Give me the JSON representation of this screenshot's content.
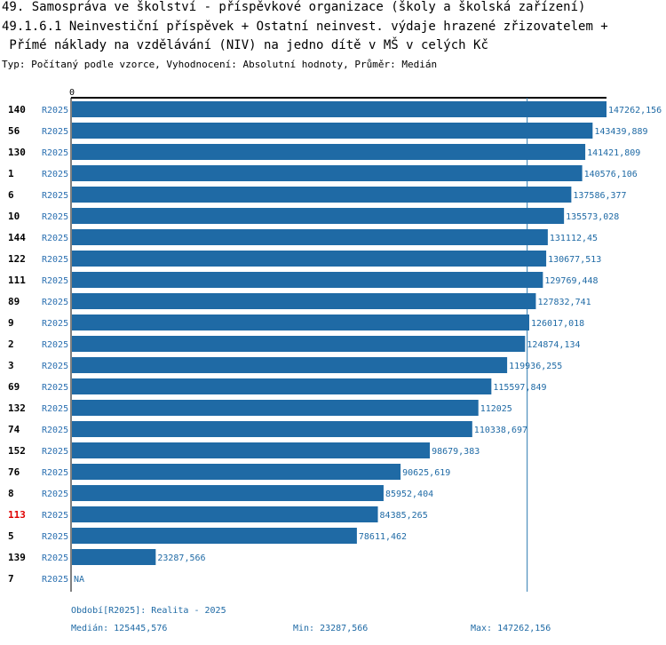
{
  "header": {
    "title_line1": "49. Samospráva ve školství - příspěvkové organizace (školy a školská zařízení)",
    "title_line2": "49.1.6.1 Neinvestiční příspěvek + Ostatní neinvest. výdaje hrazené zřizovatelem +",
    "title_line3": " Přímé náklady na vzdělávání (NIV) na jedno dítě v MŠ v celých Kč",
    "subtitle": "Typ: Počítaný podle vzorce, Vyhodnocení: Absolutní hodnoty, Průměr: Medián"
  },
  "colors": {
    "bar": "#1f6aa5",
    "highlight": "#e00000",
    "median_line": "#2a7ab0"
  },
  "chart_data": {
    "type": "bar",
    "orientation": "horizontal",
    "axis_zero_label": "0",
    "xlim": [
      0,
      147262.156
    ],
    "median": 125445.576,
    "highlight_category": "113",
    "rows": [
      {
        "id": "140",
        "series": "R2025",
        "value": 147262.156,
        "label": "147262,156"
      },
      {
        "id": "56",
        "series": "R2025",
        "value": 143439.889,
        "label": "143439,889"
      },
      {
        "id": "130",
        "series": "R2025",
        "value": 141421.809,
        "label": "141421,809"
      },
      {
        "id": "1",
        "series": "R2025",
        "value": 140576.106,
        "label": "140576,106"
      },
      {
        "id": "6",
        "series": "R2025",
        "value": 137586.377,
        "label": "137586,377"
      },
      {
        "id": "10",
        "series": "R2025",
        "value": 135573.028,
        "label": "135573,028"
      },
      {
        "id": "144",
        "series": "R2025",
        "value": 131112.45,
        "label": "131112,45"
      },
      {
        "id": "122",
        "series": "R2025",
        "value": 130677.513,
        "label": "130677,513"
      },
      {
        "id": "111",
        "series": "R2025",
        "value": 129769.448,
        "label": "129769,448"
      },
      {
        "id": "89",
        "series": "R2025",
        "value": 127832.741,
        "label": "127832,741"
      },
      {
        "id": "9",
        "series": "R2025",
        "value": 126017.018,
        "label": "126017,018"
      },
      {
        "id": "2",
        "series": "R2025",
        "value": 124874.134,
        "label": "124874,134"
      },
      {
        "id": "3",
        "series": "R2025",
        "value": 119936.255,
        "label": "119936,255"
      },
      {
        "id": "69",
        "series": "R2025",
        "value": 115597.849,
        "label": "115597,849"
      },
      {
        "id": "132",
        "series": "R2025",
        "value": 112025,
        "label": "112025"
      },
      {
        "id": "74",
        "series": "R2025",
        "value": 110338.697,
        "label": "110338,697"
      },
      {
        "id": "152",
        "series": "R2025",
        "value": 98679.383,
        "label": "98679,383"
      },
      {
        "id": "76",
        "series": "R2025",
        "value": 90625.619,
        "label": "90625,619"
      },
      {
        "id": "8",
        "series": "R2025",
        "value": 85952.404,
        "label": "85952,404"
      },
      {
        "id": "113",
        "series": "R2025",
        "value": 84385.265,
        "label": "84385,265"
      },
      {
        "id": "5",
        "series": "R2025",
        "value": 78611.462,
        "label": "78611,462"
      },
      {
        "id": "139",
        "series": "R2025",
        "value": 23287.566,
        "label": "23287,566"
      },
      {
        "id": "7",
        "series": "R2025",
        "value": null,
        "label": "NA"
      }
    ]
  },
  "footer": {
    "period": "Období[R2025]: Realita - 2025",
    "median": "Medián: 125445,576",
    "min": "Min: 23287,566",
    "max": "Max: 147262,156"
  }
}
